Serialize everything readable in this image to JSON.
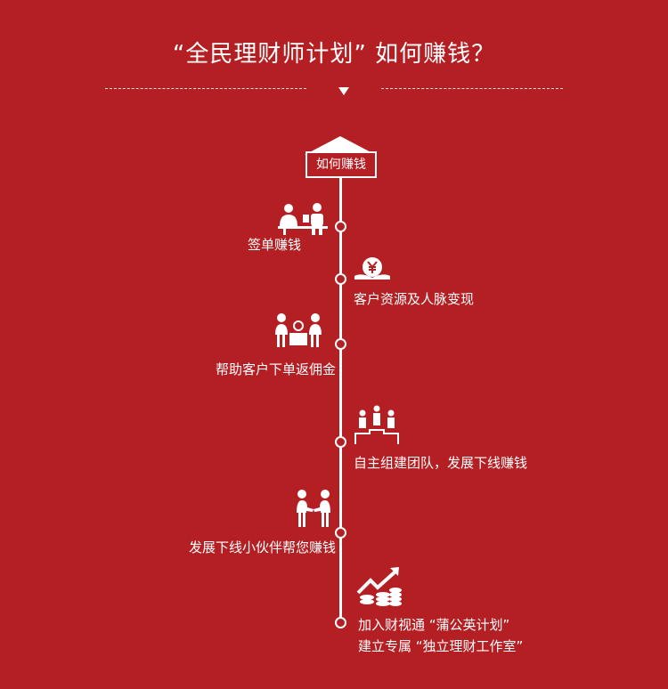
{
  "header": {
    "title": "“全民理财师计划” 如何赚钱？"
  },
  "timeline": {
    "start_label": "如何赚钱",
    "items": [
      {
        "label": "签单赚钱",
        "icon": "people-at-desk-icon"
      },
      {
        "label": "客户资源及人脉变现",
        "icon": "yuan-coin-hand-icon"
      },
      {
        "label": "帮助客户下单返佣金",
        "icon": "people-with-box-icon"
      },
      {
        "label": "自主组建团队，发展下线赚钱",
        "icon": "team-podium-icon"
      },
      {
        "label": "发展下线小伙伴帮您赚钱",
        "icon": "handshake-icon"
      },
      {
        "label_line1": "加入财视通 “蒲公英计划”",
        "label_line2": "建立专属 “独立理财工作室”",
        "icon": "growth-chart-coins-icon"
      }
    ]
  },
  "colors": {
    "background": "#b41f24",
    "foreground": "#ffffff"
  }
}
